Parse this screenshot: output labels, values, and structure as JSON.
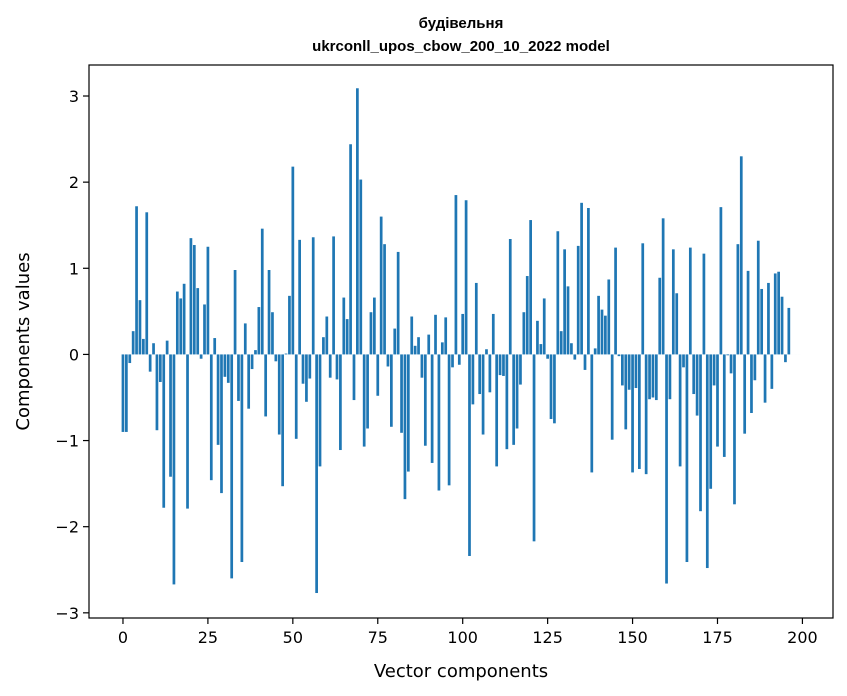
{
  "chart_data": {
    "type": "bar",
    "title": "будівельня",
    "subtitle": "ukrconll_upos_cbow_200_10_2022 model",
    "xlabel": "Vector components",
    "ylabel": "Components values",
    "xlim": [
      -10,
      209
    ],
    "ylim": [
      -3.06,
      3.36
    ],
    "xticks": [
      0,
      25,
      50,
      75,
      100,
      125,
      150,
      175,
      200
    ],
    "xtick_labels": [
      "0",
      "25",
      "50",
      "75",
      "100",
      "125",
      "150",
      "175",
      "200"
    ],
    "yticks": [
      -3,
      -2,
      -1,
      0,
      1,
      2,
      3
    ],
    "ytick_labels": [
      "−3",
      "−2",
      "−1",
      "0",
      "1",
      "2",
      "3"
    ],
    "grid": false,
    "color": "#1f77b4",
    "values": [
      -0.9,
      -0.9,
      -0.1,
      0.27,
      1.72,
      0.63,
      0.18,
      1.65,
      -0.2,
      0.13,
      -0.88,
      -0.32,
      -1.78,
      0.16,
      -1.42,
      -2.67,
      0.73,
      0.65,
      0.82,
      -1.79,
      1.35,
      1.27,
      0.77,
      -0.05,
      0.58,
      1.25,
      -1.46,
      0.19,
      -1.05,
      -1.61,
      -0.26,
      -0.33,
      -2.6,
      0.98,
      -0.54,
      -2.41,
      0.36,
      -0.63,
      -0.17,
      0.05,
      0.55,
      1.46,
      -0.72,
      0.98,
      0.49,
      -0.08,
      -0.93,
      -1.53,
      0.01,
      0.68,
      2.18,
      -0.98,
      1.33,
      -0.34,
      -0.55,
      -0.28,
      1.36,
      -2.77,
      -1.3,
      0.2,
      0.44,
      -0.27,
      1.37,
      -0.29,
      -1.11,
      0.66,
      0.41,
      2.44,
      -0.53,
      3.09,
      2.03,
      -1.07,
      -0.86,
      0.49,
      0.66,
      -0.48,
      1.6,
      1.28,
      -0.14,
      -0.84,
      0.3,
      1.19,
      -0.91,
      -1.68,
      -1.36,
      0.44,
      0.1,
      0.2,
      -0.27,
      -1.06,
      0.23,
      -1.26,
      0.46,
      -1.58,
      0.14,
      0.43,
      -1.52,
      -0.15,
      1.85,
      -0.12,
      0.47,
      1.79,
      -2.34,
      -0.58,
      0.83,
      -0.46,
      -0.93,
      0.06,
      -0.44,
      0.47,
      -1.3,
      -0.24,
      -0.25,
      -1.1,
      1.34,
      -1.05,
      -0.86,
      -0.35,
      0.49,
      0.91,
      1.56,
      -2.17,
      0.39,
      0.12,
      0.65,
      -0.05,
      -0.75,
      -0.8,
      1.43,
      0.27,
      1.22,
      0.79,
      0.13,
      -0.06,
      1.26,
      1.76,
      -0.18,
      1.7,
      -1.37,
      0.07,
      0.68,
      0.52,
      0.45,
      0.87,
      -0.99,
      1.24,
      -0.02,
      -0.36,
      -0.87,
      -0.41,
      -1.37,
      -0.39,
      -1.33,
      1.29,
      -1.39,
      -0.52,
      -0.5,
      -0.53,
      0.89,
      1.58,
      -2.66,
      -0.52,
      1.22,
      0.71,
      -1.3,
      -0.15,
      -2.41,
      1.24,
      -0.46,
      -0.71,
      -1.82,
      1.17,
      -2.48,
      -1.56,
      -0.36,
      -1.07,
      1.71,
      -1.19,
      -0.01,
      -0.22,
      -1.74,
      1.28,
      2.3,
      -0.92,
      0.97,
      -0.68,
      -0.3,
      1.32,
      0.76,
      -0.56,
      0.83,
      -0.4,
      0.94,
      0.96,
      0.67,
      -0.09,
      0.54,
      0.0,
      0.0,
      0.0
    ]
  }
}
